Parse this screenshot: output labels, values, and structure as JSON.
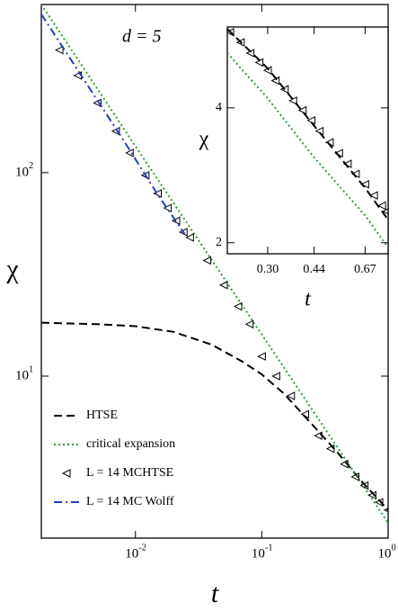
{
  "chart_data": [
    {
      "type": "line",
      "xlabel": "t",
      "ylabel": "χ",
      "annotation": "d = 5",
      "xscale": "log",
      "yscale": "log",
      "xlim": [
        0.0018,
        1
      ],
      "ylim": [
        1.6,
        670
      ],
      "xticks": [
        {
          "value": 0.01,
          "label": "10",
          "exponent": "-2"
        },
        {
          "value": 0.1,
          "label": "10",
          "exponent": "-1"
        },
        {
          "value": 1,
          "label": "10",
          "exponent": "0"
        }
      ],
      "yticks": [
        {
          "value": 10,
          "label": "10",
          "exponent": "1"
        },
        {
          "value": 100,
          "label": "10",
          "exponent": "2"
        }
      ],
      "legend": "lower left",
      "series": [
        {
          "name": "HTSE",
          "color": "#000000",
          "style": "dashed",
          "x": [
            0.0018,
            0.005,
            0.01,
            0.02,
            0.04,
            0.07,
            0.1,
            0.15,
            0.25,
            0.4,
            0.6,
            1.0
          ],
          "values": [
            18.3,
            18.0,
            17.6,
            16.5,
            14.3,
            11.8,
            10.2,
            8.2,
            5.8,
            4.2,
            3.1,
            2.2
          ]
        },
        {
          "name": "critical expansion",
          "color": "#2ca02c",
          "style": "dotted",
          "x": [
            0.0018,
            0.01,
            0.1,
            1.0
          ],
          "values": [
            670,
            135,
            16,
            1.9
          ]
        },
        {
          "name": "L = 14 MCHTSE",
          "color": "#000000",
          "style": "triangle-left",
          "x": [
            0.0025,
            0.0035,
            0.005,
            0.007,
            0.009,
            0.012,
            0.015,
            0.018,
            0.021,
            0.024,
            0.027,
            0.037,
            0.05,
            0.065,
            0.08,
            0.1,
            0.13,
            0.17,
            0.22,
            0.28,
            0.35,
            0.45,
            0.55,
            0.65,
            0.75,
            0.85,
            1.0
          ],
          "values": [
            400,
            300,
            220,
            160,
            125,
            97,
            79,
            67,
            58,
            51,
            48,
            37,
            28,
            22,
            18,
            12.5,
            10,
            8,
            6.5,
            5.1,
            4.4,
            3.7,
            3.2,
            2.9,
            2.6,
            2.4,
            2.2
          ]
        },
        {
          "name": "L = 14 MC Wolff",
          "color": "#1f3fd0",
          "style": "dashdot",
          "x": [
            0.0018,
            0.004,
            0.008,
            0.015,
            0.0245
          ],
          "values": [
            600,
            280,
            145,
            78,
            50
          ]
        }
      ]
    },
    {
      "type": "line",
      "xlabel": "t",
      "ylabel": "χ",
      "xscale": "log",
      "yscale": "log",
      "xlim": [
        0.215,
        0.81
      ],
      "ylim": [
        1.89,
        6.06
      ],
      "xticks": [
        {
          "value": 0.3,
          "label": "0.30"
        },
        0.44,
        0.67
      ],
      "yticks": [
        2,
        4
      ],
      "series": [
        {
          "name": "HTSE",
          "color": "#000000",
          "style": "dashed",
          "x": [
            0.215,
            0.3,
            0.44,
            0.67,
            0.81
          ],
          "values": [
            6.0,
            4.9,
            3.65,
            2.65,
            2.25
          ]
        },
        {
          "name": "critical expansion",
          "color": "#2ca02c",
          "style": "dotted",
          "x": [
            0.215,
            0.3,
            0.44,
            0.67,
            0.81
          ],
          "values": [
            5.3,
            4.2,
            3.1,
            2.3,
            1.95
          ]
        },
        {
          "name": "L = 14 MCHTSE",
          "color": "#000000",
          "style": "triangle-left",
          "x": [
            0.22,
            0.24,
            0.26,
            0.28,
            0.3,
            0.32,
            0.345,
            0.37,
            0.4,
            0.43,
            0.46,
            0.5,
            0.54,
            0.58,
            0.62,
            0.67,
            0.72,
            0.77,
            0.8
          ],
          "values": [
            5.9,
            5.6,
            5.3,
            5.05,
            4.85,
            4.6,
            4.4,
            4.15,
            3.95,
            3.75,
            3.55,
            3.35,
            3.17,
            3.0,
            2.85,
            2.7,
            2.55,
            2.42,
            2.35
          ]
        }
      ]
    }
  ]
}
